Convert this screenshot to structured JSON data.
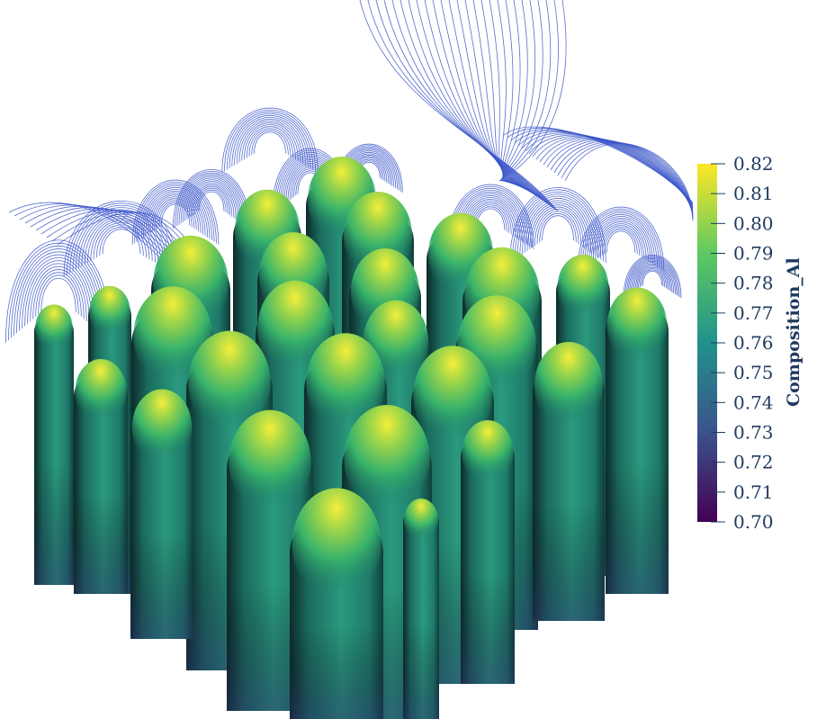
{
  "colorbar": {
    "title": "Composition_Al",
    "ticks": [
      "0.82",
      "0.81",
      "0.80",
      "0.79",
      "0.78",
      "0.77",
      "0.76",
      "0.75",
      "0.74",
      "0.73",
      "0.72",
      "0.71",
      "0.70"
    ],
    "min": 0.7,
    "max": 0.82,
    "colormap": [
      "#440154",
      "#3b528b",
      "#21918c",
      "#5ec962",
      "#fde725"
    ]
  },
  "streamline_color": "#3a55c9"
}
